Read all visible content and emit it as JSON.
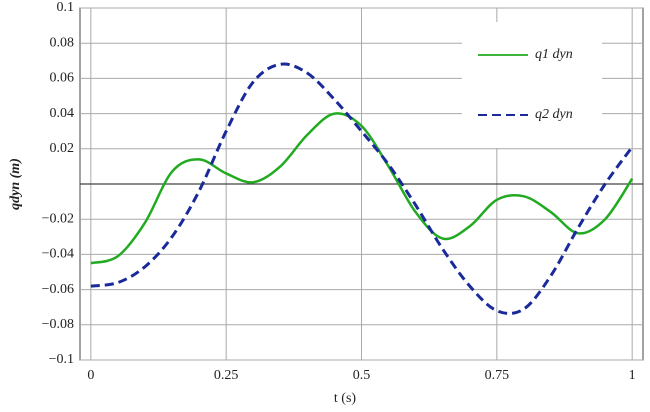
{
  "chart_data": {
    "type": "line",
    "xlabel": "t (s)",
    "ylabel": "qdyn (m)",
    "x": [
      0,
      0.05,
      0.1,
      0.15,
      0.2,
      0.25,
      0.3,
      0.35,
      0.4,
      0.45,
      0.5,
      0.55,
      0.6,
      0.65,
      0.7,
      0.75,
      0.8,
      0.85,
      0.9,
      0.95,
      1
    ],
    "series": [
      {
        "name": "q1 dyn",
        "color": "#22aa22",
        "dash": false,
        "values": [
          -0.045,
          -0.041,
          -0.022,
          0.007,
          0.014,
          0.006,
          0.001,
          0.01,
          0.028,
          0.04,
          0.033,
          0.01,
          -0.016,
          -0.031,
          -0.024,
          -0.009,
          -0.007,
          -0.016,
          -0.028,
          -0.02,
          0.003
        ]
      },
      {
        "name": "q2 dyn",
        "color": "#1a2a9a",
        "dash": true,
        "values": [
          -0.058,
          -0.056,
          -0.047,
          -0.03,
          -0.004,
          0.03,
          0.058,
          0.068,
          0.063,
          0.048,
          0.03,
          0.011,
          -0.012,
          -0.037,
          -0.058,
          -0.072,
          -0.071,
          -0.052,
          -0.025,
          0.0,
          0.021
        ]
      }
    ],
    "xlim": [
      -0.02,
      1.02
    ],
    "ylim": [
      -0.1,
      0.1
    ],
    "xticks": [
      0,
      0.25,
      0.5,
      0.75,
      1
    ],
    "yticks": [
      0.1,
      0.08,
      0.06,
      0.04,
      0.02,
      {
        "value": -0.02,
        "label": "−0.02"
      },
      {
        "value": -0.04,
        "label": "−0.04"
      },
      {
        "value": -0.06,
        "label": "−0.06"
      },
      {
        "value": -0.08,
        "label": "−0.08"
      },
      {
        "value": -0.1,
        "label": "−0.1"
      }
    ],
    "grid": true,
    "legend": "upper right"
  }
}
